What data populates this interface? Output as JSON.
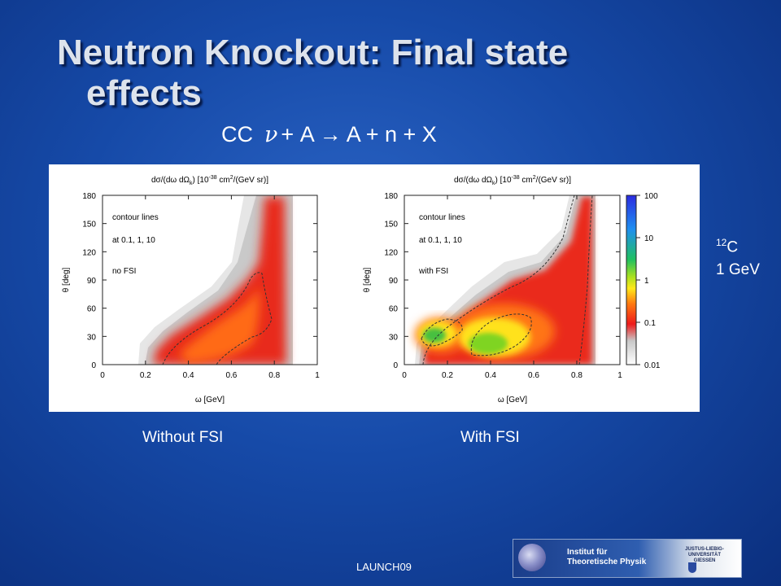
{
  "slide": {
    "title_line1": "Neutron Knockout: Final state",
    "title_line2": "effects",
    "reaction_prefix": "CC",
    "reaction_nu": "ν",
    "reaction_rest": "+ A → A + n + X",
    "target_mass": "12",
    "target_element": "C",
    "beam_energy": "1 GeV",
    "caption_left": "Without FSI",
    "caption_right": "With FSI",
    "footer": "LAUNCH09",
    "logo_line1": "Institut für",
    "logo_line2": "Theoretische Physik",
    "logo_uni1": "JUSTUS-LIEBIG-",
    "logo_uni2": "UNIVERSITÄT",
    "logo_uni3": "GIESSEN"
  },
  "chart_data": [
    {
      "type": "heatmap",
      "title_main": "dσ/(dω dΩ",
      "title_sub": "k",
      "title_mid": ") [10",
      "title_exp": "-38",
      "title_mid2": " cm",
      "title_exp2": "2",
      "title_end": "/(GeV sr)]",
      "xlabel": "ω [GeV]",
      "ylabel": "θ [deg]",
      "xlim": [
        0,
        1
      ],
      "ylim": [
        0,
        180
      ],
      "x_ticks": [
        "0",
        "0.2",
        "0.4",
        "0.6",
        "0.8",
        "1"
      ],
      "y_ticks": [
        "0",
        "30",
        "60",
        "90",
        "120",
        "150",
        "180"
      ],
      "annotations": [
        "contour lines",
        "at 0.1, 1, 10",
        "no FSI"
      ],
      "contour_levels": [
        0.1,
        1,
        10
      ]
    },
    {
      "type": "heatmap",
      "title_main": "dσ/(dω dΩ",
      "title_sub": "k",
      "title_mid": ") [10",
      "title_exp": "-38",
      "title_mid2": " cm",
      "title_exp2": "2",
      "title_end": "/(GeV sr)]",
      "xlabel": "ω [GeV]",
      "ylabel": "θ [deg]",
      "xlim": [
        0,
        1
      ],
      "ylim": [
        0,
        180
      ],
      "x_ticks": [
        "0",
        "0.2",
        "0.4",
        "0.6",
        "0.8",
        "1"
      ],
      "y_ticks": [
        "0",
        "30",
        "60",
        "90",
        "120",
        "150",
        "180"
      ],
      "annotations": [
        "contour lines",
        "at 0.1, 1, 10",
        "with FSI"
      ],
      "contour_levels": [
        0.1,
        1,
        10
      ],
      "colorbar_ticks": [
        "100",
        "10",
        "1",
        "0.1",
        "0.01"
      ],
      "colorbar_scale": "log",
      "colorbar_range": [
        0.01,
        100
      ]
    }
  ]
}
